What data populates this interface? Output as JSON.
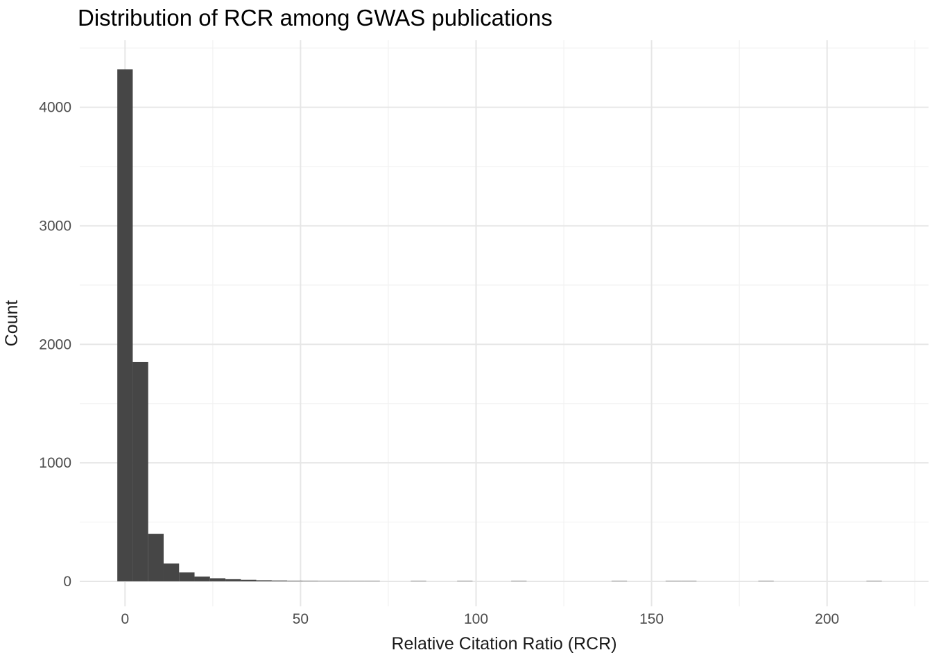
{
  "chart_data": {
    "type": "bar",
    "subtype": "histogram",
    "title": "Distribution of RCR among GWAS publications",
    "xlabel": "Relative Citation Ratio (RCR)",
    "ylabel": "Count",
    "bin_width": 4.4,
    "bins": [
      {
        "center": 0,
        "count": 4320
      },
      {
        "center": 4.4,
        "count": 1850
      },
      {
        "center": 8.8,
        "count": 400
      },
      {
        "center": 13.2,
        "count": 150
      },
      {
        "center": 17.6,
        "count": 75
      },
      {
        "center": 22,
        "count": 40
      },
      {
        "center": 26.4,
        "count": 26
      },
      {
        "center": 30.8,
        "count": 18
      },
      {
        "center": 35.2,
        "count": 13
      },
      {
        "center": 39.6,
        "count": 9
      },
      {
        "center": 44,
        "count": 7
      },
      {
        "center": 48.4,
        "count": 5
      },
      {
        "center": 52.8,
        "count": 4
      },
      {
        "center": 57.2,
        "count": 3
      },
      {
        "center": 61.6,
        "count": 2
      },
      {
        "center": 66,
        "count": 2
      },
      {
        "center": 70.4,
        "count": 1
      },
      {
        "center": 83.6,
        "count": 1
      },
      {
        "center": 96.8,
        "count": 1
      },
      {
        "center": 112.2,
        "count": 1
      },
      {
        "center": 140.8,
        "count": 1
      },
      {
        "center": 156.2,
        "count": 1
      },
      {
        "center": 160.6,
        "count": 1
      },
      {
        "center": 182.6,
        "count": 1
      },
      {
        "center": 213.4,
        "count": 1
      }
    ],
    "x_major_ticks": [
      0,
      50,
      100,
      150,
      200
    ],
    "x_minor_ticks": [
      25,
      75,
      125,
      175,
      225
    ],
    "y_major_ticks": [
      0,
      1000,
      2000,
      3000,
      4000
    ],
    "y_minor_ticks": [
      500,
      1500,
      2500,
      3500,
      4500
    ],
    "xlim": [
      -12.9,
      228.9
    ],
    "ylim": [
      -211,
      4566
    ],
    "grid": "major and minor, light gray on white",
    "legend_position": "none",
    "colors": {
      "bar": "#464646",
      "grid_major": "#e6e6e6",
      "grid_minor": "#f2f2f2",
      "title_text": "#000000",
      "axis_title_text": "#1a1a1a",
      "tick_label_text": "#4d4d4d",
      "background": "#ffffff"
    }
  }
}
